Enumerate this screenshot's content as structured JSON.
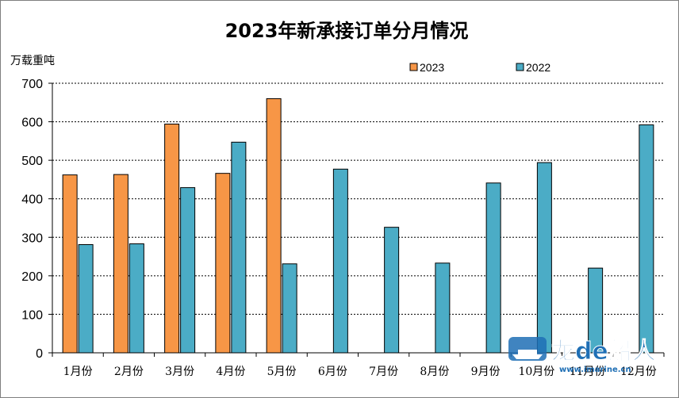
{
  "chart_data": {
    "type": "bar",
    "title": "2023年新承接订单分月情况",
    "ylabel": "万载重吨",
    "xlabel": "",
    "categories": [
      "1月份",
      "2月份",
      "3月份",
      "4月份",
      "5月份",
      "6月份",
      "7月份",
      "8月份",
      "9月份",
      "10月份",
      "11月份",
      "12月份"
    ],
    "series": [
      {
        "name": "2023",
        "color": "#f79646",
        "values": [
          462,
          463,
          594,
          466,
          660,
          null,
          null,
          null,
          null,
          null,
          null,
          null
        ]
      },
      {
        "name": "2022",
        "color": "#4bacc6",
        "values": [
          281,
          283,
          429,
          547,
          231,
          477,
          326,
          233,
          441,
          494,
          220,
          592
        ]
      }
    ],
    "ylim": [
      0,
      700
    ],
    "yticks": [
      0,
      100,
      200,
      300,
      400,
      500,
      600,
      700
    ],
    "grid": true,
    "legend_position": "top-right"
  },
  "watermark": {
    "logo_text": "龙de船人",
    "url": "www.imarine.cn",
    "colors": {
      "primary": "#1f6fb5",
      "accent": "#e4302b"
    }
  }
}
